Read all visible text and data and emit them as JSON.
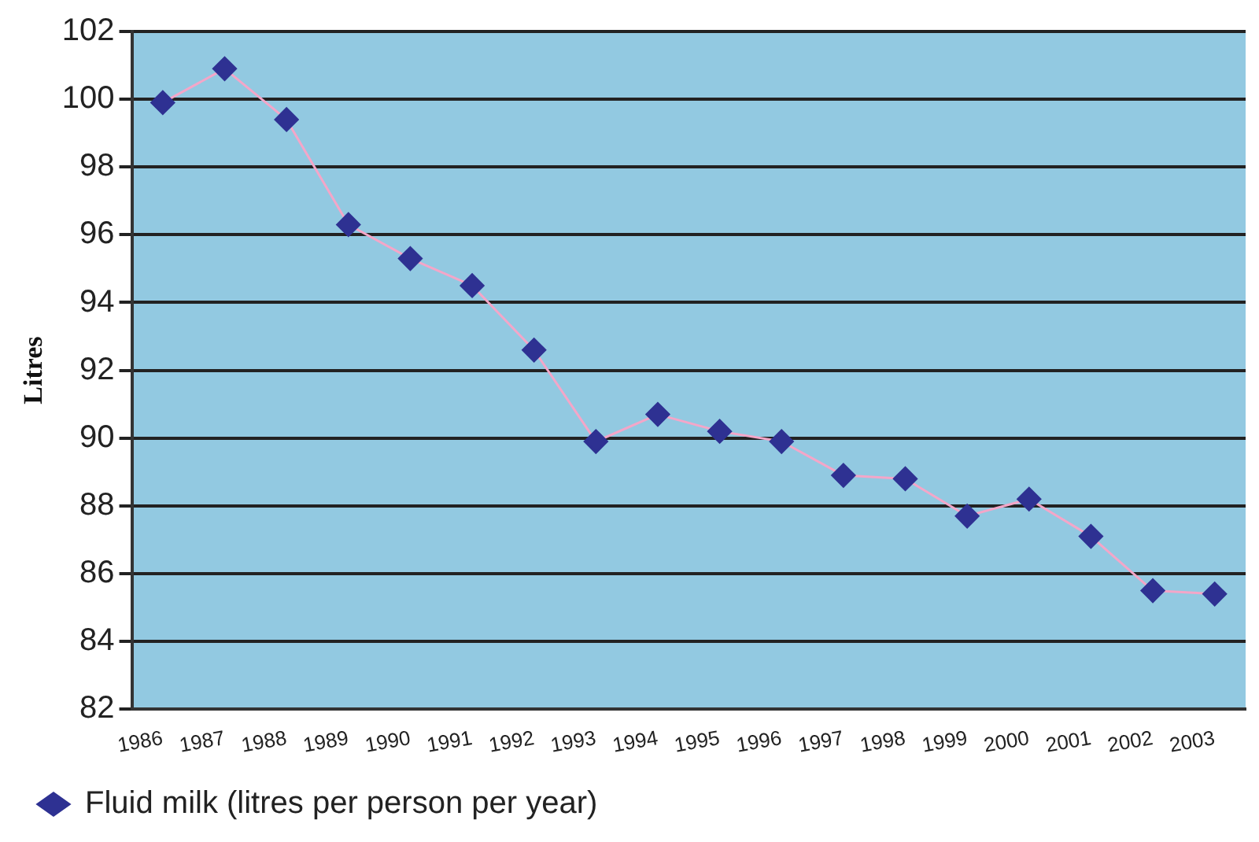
{
  "chart_data": {
    "type": "line",
    "ylabel": "Litres",
    "categories": [
      "1986",
      "1987",
      "1988",
      "1989",
      "1990",
      "1991",
      "1992",
      "1993",
      "1994",
      "1995",
      "1996",
      "1997",
      "1998",
      "1999",
      "2000",
      "2001",
      "2002",
      "2003"
    ],
    "series": [
      {
        "name": "Fluid milk (litres per person per year)",
        "color": "#2e3192",
        "values": [
          99.9,
          100.9,
          99.4,
          96.3,
          95.3,
          94.5,
          92.6,
          89.9,
          90.7,
          90.2,
          89.9,
          88.9,
          88.8,
          87.7,
          88.2,
          87.1,
          85.5,
          85.4
        ]
      }
    ],
    "ylim": [
      82,
      102
    ],
    "yticks": [
      82,
      84,
      86,
      88,
      90,
      92,
      94,
      96,
      98,
      100,
      102
    ],
    "grid": "y",
    "legend": "bottom left",
    "marker": "diamond",
    "line_style": "solid"
  }
}
